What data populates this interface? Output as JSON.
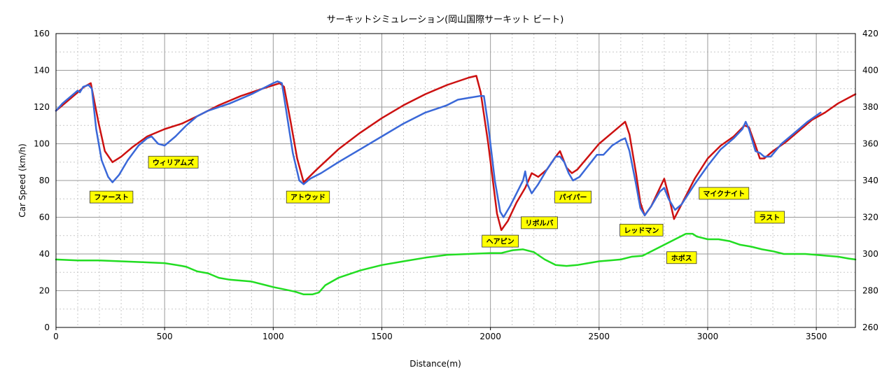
{
  "chart_data": {
    "type": "line",
    "title": "サーキットシミュレーション(岡山国際サーキット ビート)",
    "xlabel": "Distance(m)",
    "ylabel": "Car Speed (km/h)",
    "xlim": [
      0,
      3680
    ],
    "ylim": [
      0,
      160
    ],
    "y2lim": [
      260,
      420
    ],
    "x_ticks": [
      "0",
      "500",
      "1000",
      "1500",
      "2000",
      "2500",
      "3000",
      "3500"
    ],
    "y_ticks": [
      "0",
      "20",
      "40",
      "60",
      "80",
      "100",
      "120",
      "140",
      "160"
    ],
    "y2_ticks": [
      "260",
      "280",
      "300",
      "320",
      "340",
      "360",
      "380",
      "400",
      "420"
    ],
    "grid": true,
    "colors": {
      "red": "#cc1111",
      "blue": "#3a68d8",
      "green": "#22dd22",
      "annotation_bg": "#ffff00"
    },
    "series": [
      {
        "color": "#cc1111",
        "axis": "left",
        "points": [
          [
            0,
            118
          ],
          [
            70,
            125
          ],
          [
            130,
            131
          ],
          [
            160,
            133
          ],
          [
            195,
            112
          ],
          [
            225,
            96
          ],
          [
            260,
            90
          ],
          [
            300,
            93
          ],
          [
            350,
            98
          ],
          [
            420,
            104
          ],
          [
            500,
            108
          ],
          [
            580,
            111
          ],
          [
            650,
            115
          ],
          [
            750,
            121
          ],
          [
            850,
            126
          ],
          [
            950,
            130
          ],
          [
            1030,
            133
          ],
          [
            1050,
            131
          ],
          [
            1080,
            112
          ],
          [
            1110,
            92
          ],
          [
            1140,
            79
          ],
          [
            1200,
            86
          ],
          [
            1300,
            97
          ],
          [
            1400,
            106
          ],
          [
            1500,
            114
          ],
          [
            1600,
            121
          ],
          [
            1700,
            127
          ],
          [
            1800,
            132
          ],
          [
            1900,
            136
          ],
          [
            1935,
            137
          ],
          [
            1955,
            128
          ],
          [
            1990,
            100
          ],
          [
            2030,
            62
          ],
          [
            2050,
            53
          ],
          [
            2080,
            58
          ],
          [
            2120,
            68
          ],
          [
            2160,
            76
          ],
          [
            2190,
            84
          ],
          [
            2220,
            82
          ],
          [
            2260,
            86
          ],
          [
            2300,
            93
          ],
          [
            2320,
            96
          ],
          [
            2350,
            87
          ],
          [
            2375,
            84
          ],
          [
            2400,
            86
          ],
          [
            2450,
            93
          ],
          [
            2500,
            100
          ],
          [
            2560,
            106
          ],
          [
            2600,
            110
          ],
          [
            2620,
            112
          ],
          [
            2640,
            105
          ],
          [
            2670,
            84
          ],
          [
            2690,
            68
          ],
          [
            2710,
            61
          ],
          [
            2740,
            66
          ],
          [
            2780,
            76
          ],
          [
            2800,
            81
          ],
          [
            2820,
            72
          ],
          [
            2845,
            59
          ],
          [
            2880,
            67
          ],
          [
            2940,
            81
          ],
          [
            3000,
            92
          ],
          [
            3060,
            99
          ],
          [
            3120,
            104
          ],
          [
            3170,
            110
          ],
          [
            3190,
            109
          ],
          [
            3220,
            99
          ],
          [
            3240,
            92
          ],
          [
            3260,
            92
          ],
          [
            3300,
            96
          ],
          [
            3360,
            101
          ],
          [
            3420,
            107
          ],
          [
            3480,
            113
          ],
          [
            3540,
            117
          ],
          [
            3600,
            122
          ],
          [
            3680,
            127
          ]
        ]
      },
      {
        "color": "#3a68d8",
        "axis": "left",
        "points": [
          [
            0,
            118
          ],
          [
            30,
            122
          ],
          [
            70,
            126
          ],
          [
            100,
            129
          ],
          [
            110,
            128
          ],
          [
            125,
            131
          ],
          [
            150,
            132
          ],
          [
            165,
            130
          ],
          [
            185,
            108
          ],
          [
            210,
            91
          ],
          [
            240,
            82
          ],
          [
            260,
            79
          ],
          [
            290,
            83
          ],
          [
            330,
            91
          ],
          [
            380,
            99
          ],
          [
            420,
            103
          ],
          [
            440,
            104
          ],
          [
            470,
            100
          ],
          [
            500,
            99
          ],
          [
            550,
            104
          ],
          [
            600,
            110
          ],
          [
            650,
            115
          ],
          [
            700,
            118
          ],
          [
            800,
            122
          ],
          [
            900,
            127
          ],
          [
            1000,
            133
          ],
          [
            1020,
            134
          ],
          [
            1040,
            133
          ],
          [
            1060,
            118
          ],
          [
            1090,
            95
          ],
          [
            1120,
            80
          ],
          [
            1140,
            78
          ],
          [
            1170,
            81
          ],
          [
            1220,
            84
          ],
          [
            1300,
            90
          ],
          [
            1400,
            97
          ],
          [
            1500,
            104
          ],
          [
            1600,
            111
          ],
          [
            1700,
            117
          ],
          [
            1800,
            121
          ],
          [
            1850,
            124
          ],
          [
            1900,
            125
          ],
          [
            1950,
            126
          ],
          [
            1970,
            126
          ],
          [
            1990,
            110
          ],
          [
            2020,
            80
          ],
          [
            2045,
            63
          ],
          [
            2060,
            60
          ],
          [
            2090,
            66
          ],
          [
            2120,
            73
          ],
          [
            2150,
            80
          ],
          [
            2160,
            85
          ],
          [
            2170,
            78
          ],
          [
            2190,
            73
          ],
          [
            2220,
            78
          ],
          [
            2260,
            86
          ],
          [
            2300,
            93
          ],
          [
            2320,
            93
          ],
          [
            2340,
            90
          ],
          [
            2360,
            84
          ],
          [
            2380,
            80
          ],
          [
            2410,
            82
          ],
          [
            2450,
            88
          ],
          [
            2490,
            94
          ],
          [
            2520,
            94
          ],
          [
            2560,
            99
          ],
          [
            2600,
            102
          ],
          [
            2620,
            103
          ],
          [
            2640,
            96
          ],
          [
            2670,
            78
          ],
          [
            2690,
            65
          ],
          [
            2710,
            61
          ],
          [
            2740,
            66
          ],
          [
            2780,
            74
          ],
          [
            2800,
            76
          ],
          [
            2820,
            70
          ],
          [
            2850,
            64
          ],
          [
            2880,
            67
          ],
          [
            2940,
            78
          ],
          [
            3000,
            88
          ],
          [
            3060,
            97
          ],
          [
            3120,
            103
          ],
          [
            3160,
            108
          ],
          [
            3175,
            112
          ],
          [
            3190,
            108
          ],
          [
            3220,
            96
          ],
          [
            3240,
            95
          ],
          [
            3260,
            93
          ],
          [
            3290,
            93
          ],
          [
            3340,
            100
          ],
          [
            3400,
            106
          ],
          [
            3460,
            112
          ],
          [
            3520,
            117
          ]
        ]
      },
      {
        "color": "#22dd22",
        "axis": "right",
        "points": [
          [
            0,
            297
          ],
          [
            100,
            296.5
          ],
          [
            200,
            296.5
          ],
          [
            300,
            296
          ],
          [
            400,
            295.5
          ],
          [
            500,
            295
          ],
          [
            580,
            293.5
          ],
          [
            600,
            293
          ],
          [
            620,
            292
          ],
          [
            650,
            290.5
          ],
          [
            700,
            289.5
          ],
          [
            750,
            287
          ],
          [
            800,
            286
          ],
          [
            900,
            285
          ],
          [
            1000,
            282
          ],
          [
            1100,
            279.5
          ],
          [
            1140,
            278
          ],
          [
            1180,
            278
          ],
          [
            1210,
            279
          ],
          [
            1240,
            283
          ],
          [
            1300,
            287
          ],
          [
            1400,
            291
          ],
          [
            1500,
            294
          ],
          [
            1600,
            296
          ],
          [
            1700,
            298
          ],
          [
            1800,
            299.5
          ],
          [
            1900,
            300
          ],
          [
            2000,
            300.5
          ],
          [
            2050,
            300.5
          ],
          [
            2100,
            302
          ],
          [
            2150,
            302.5
          ],
          [
            2200,
            301
          ],
          [
            2250,
            297
          ],
          [
            2300,
            294
          ],
          [
            2350,
            293.5
          ],
          [
            2400,
            294
          ],
          [
            2450,
            295
          ],
          [
            2500,
            296
          ],
          [
            2550,
            296.5
          ],
          [
            2600,
            297
          ],
          [
            2650,
            298.5
          ],
          [
            2700,
            299
          ],
          [
            2750,
            302
          ],
          [
            2800,
            305
          ],
          [
            2850,
            308
          ],
          [
            2900,
            311
          ],
          [
            2930,
            311
          ],
          [
            2950,
            309.5
          ],
          [
            3000,
            308
          ],
          [
            3050,
            308
          ],
          [
            3100,
            307
          ],
          [
            3150,
            305
          ],
          [
            3200,
            304
          ],
          [
            3250,
            302.5
          ],
          [
            3300,
            301.5
          ],
          [
            3350,
            300
          ],
          [
            3400,
            300
          ],
          [
            3450,
            300
          ],
          [
            3500,
            299.5
          ],
          [
            3550,
            299
          ],
          [
            3600,
            298.5
          ],
          [
            3650,
            297.5
          ],
          [
            3680,
            297
          ]
        ]
      }
    ],
    "annotations": [
      {
        "label": "ファースト",
        "x": 255,
        "y": 71
      },
      {
        "label": "ウィリアムズ",
        "x": 540,
        "y": 90
      },
      {
        "label": "アトウッド",
        "x": 1160,
        "y": 71
      },
      {
        "label": "ヘアピン",
        "x": 2045,
        "y": 47
      },
      {
        "label": "リボルバ",
        "x": 2225,
        "y": 57
      },
      {
        "label": "パイパー",
        "x": 2380,
        "y": 71
      },
      {
        "label": "レッドマン",
        "x": 2695,
        "y": 53
      },
      {
        "label": "ホボス",
        "x": 2880,
        "y": 38
      },
      {
        "label": "マイクナイト",
        "x": 3075,
        "y": 73
      },
      {
        "label": "ラスト",
        "x": 3285,
        "y": 60
      }
    ]
  }
}
